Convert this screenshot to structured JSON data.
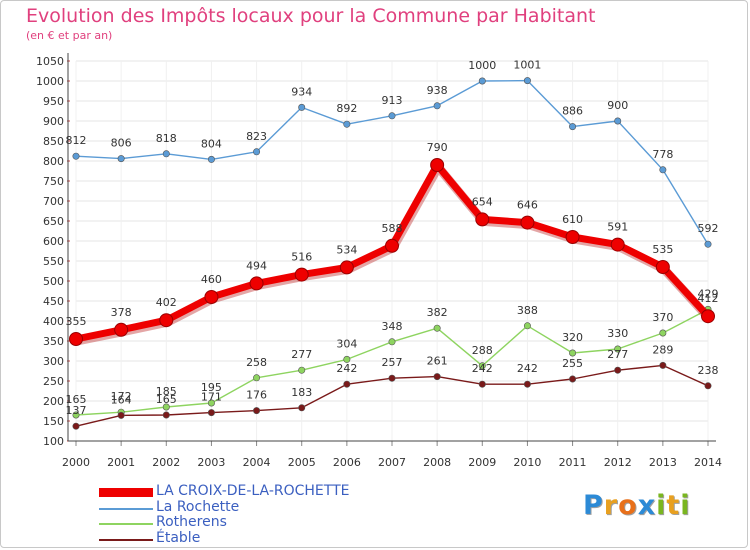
{
  "title": "Evolution des Impôts locaux pour la Commune par Habitant",
  "subtitle": "(en € et par an)",
  "brand": {
    "letters": [
      "P",
      "r",
      "o",
      "x",
      "i",
      "t",
      "i"
    ],
    "colors": [
      "#2c8ad6",
      "#e8a020",
      "#e8701a",
      "#2c8ad6",
      "#7ab620",
      "#e8a020",
      "#7ab620"
    ]
  },
  "chart_data": {
    "type": "line",
    "title": "Evolution des Impôts locaux pour la Commune par Habitant",
    "subtitle": "(en € et par an)",
    "xlabel": "",
    "ylabel": "",
    "ylim": [
      100,
      1050
    ],
    "y_ticks": [
      100,
      150,
      200,
      250,
      300,
      350,
      400,
      450,
      500,
      550,
      600,
      650,
      700,
      750,
      800,
      850,
      900,
      950,
      1000,
      1050
    ],
    "grid": true,
    "legend_position": "bottom-left",
    "x": [
      "2000",
      "2001",
      "2002",
      "2003",
      "2004",
      "2005",
      "2006",
      "2007",
      "2008",
      "2009",
      "2010",
      "2011",
      "2012",
      "2013",
      "2014"
    ],
    "series": [
      {
        "name": "LA CROIX-DE-LA-ROCHETTE",
        "color": "#ee0000",
        "thick": true,
        "values": [
          355,
          378,
          402,
          460,
          494,
          516,
          534,
          588,
          790,
          654,
          646,
          610,
          591,
          535,
          412
        ]
      },
      {
        "name": "La Rochette",
        "color": "#5b9bd5",
        "thick": false,
        "values": [
          812,
          806,
          818,
          804,
          823,
          934,
          892,
          913,
          938,
          1000,
          1001,
          886,
          900,
          778,
          592
        ]
      },
      {
        "name": "Rotherens",
        "color": "#8ed460",
        "thick": false,
        "values": [
          165,
          172,
          185,
          195,
          258,
          277,
          304,
          348,
          382,
          288,
          388,
          320,
          330,
          370,
          429
        ]
      },
      {
        "name": "Étable",
        "color": "#7a1a1a",
        "thick": false,
        "values": [
          137,
          164,
          165,
          171,
          176,
          183,
          242,
          257,
          261,
          242,
          242,
          255,
          277,
          289,
          238
        ]
      }
    ]
  }
}
